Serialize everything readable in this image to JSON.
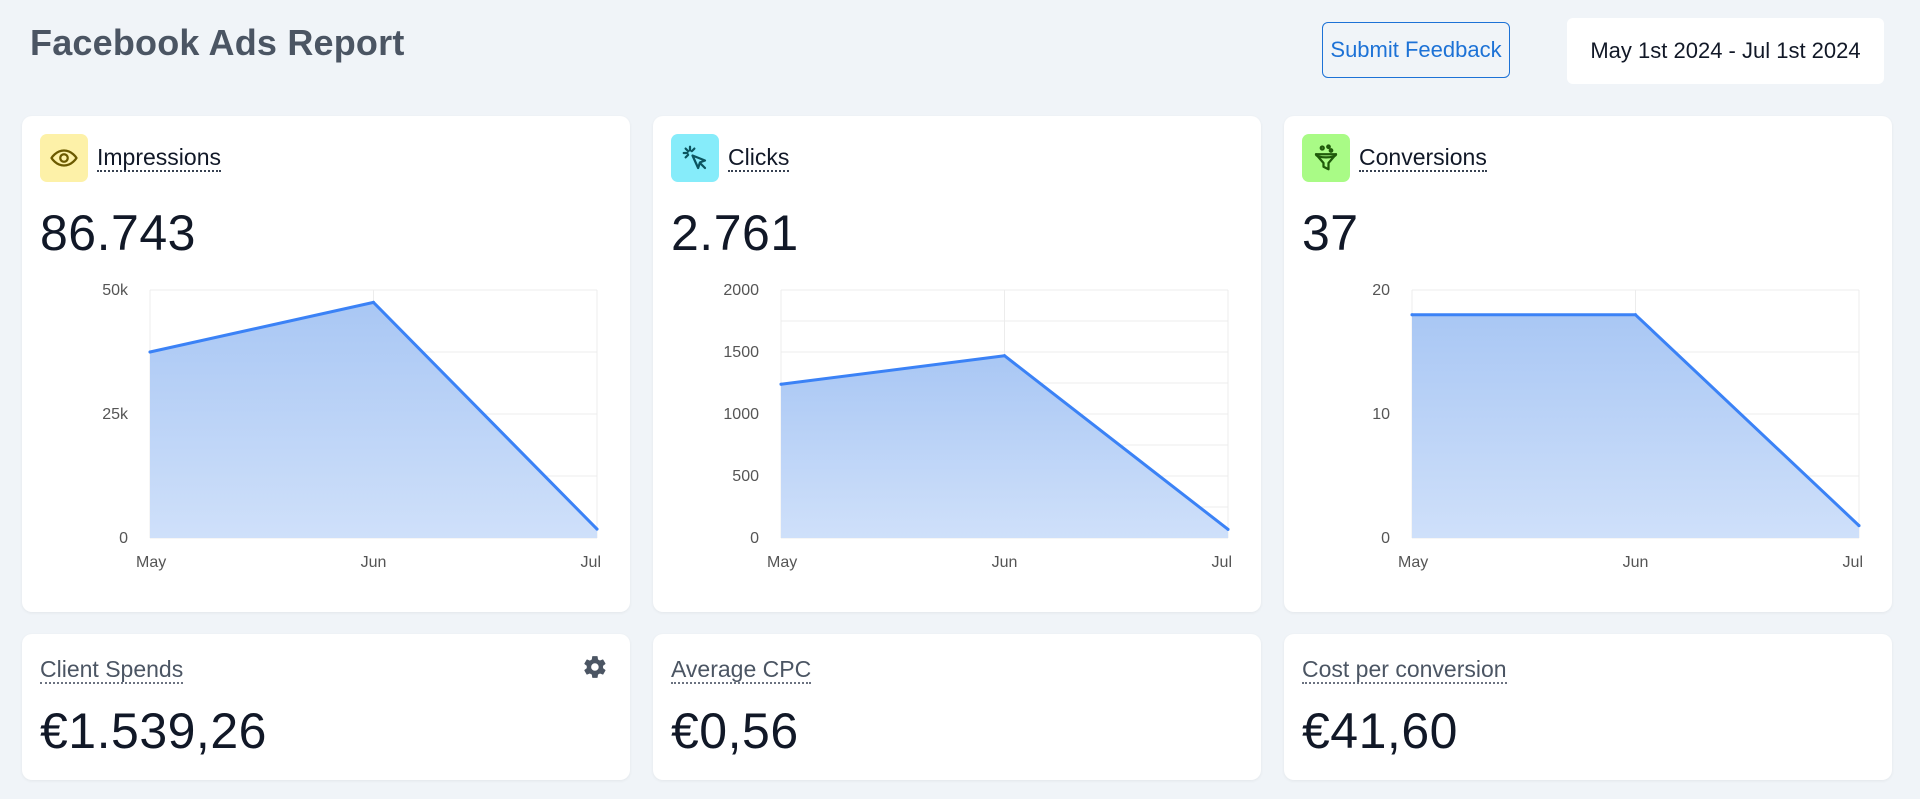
{
  "header": {
    "title": "Facebook Ads Report",
    "feedback_label": "Submit Feedback",
    "date_range": "May 1st 2024 - Jul 1st 2024"
  },
  "colors": {
    "accent": "#1d72d6",
    "line": "#3b82f6",
    "area_top": "#a9c7f4",
    "area_bottom": "#cfe0fa",
    "impressions_icon_bg": "#fdf1a8",
    "clicks_icon_bg": "#86ecfa",
    "conversions_icon_bg": "#a9fb86"
  },
  "metrics": {
    "impressions": {
      "label": "Impressions",
      "value": "86.743",
      "icon": "eye-icon"
    },
    "clicks": {
      "label": "Clicks",
      "value": "2.761",
      "icon": "cursor-click-icon"
    },
    "conversions": {
      "label": "Conversions",
      "value": "37",
      "icon": "funnel-icon"
    }
  },
  "spend": {
    "client_spends": {
      "label": "Client Spends",
      "value": "€1.539,26",
      "icon": "gear-icon"
    },
    "average_cpc": {
      "label": "Average CPC",
      "value": "€0,56"
    },
    "cost_per_conversion": {
      "label": "Cost per conversion",
      "value": "€41,60"
    }
  },
  "chart_data": [
    {
      "type": "area",
      "categories": [
        "May",
        "Jun",
        "Jul"
      ],
      "values": [
        37500,
        47500,
        1800
      ],
      "yticks": [
        "0",
        "25k",
        "50k"
      ],
      "ytick_values": [
        0,
        25000,
        50000
      ],
      "ylim": [
        0,
        50000
      ],
      "grid": true
    },
    {
      "type": "area",
      "categories": [
        "May",
        "Jun",
        "Jul"
      ],
      "values": [
        1240,
        1470,
        70
      ],
      "yticks": [
        "0",
        "500",
        "1000",
        "1500",
        "2000"
      ],
      "ytick_values": [
        0,
        500,
        1000,
        1500,
        2000
      ],
      "ylim": [
        0,
        2000
      ],
      "grid": true
    },
    {
      "type": "area",
      "categories": [
        "May",
        "Jun",
        "Jul"
      ],
      "values": [
        18,
        18,
        1
      ],
      "yticks": [
        "0",
        "10",
        "20"
      ],
      "ytick_values": [
        0,
        10,
        20
      ],
      "ylim": [
        0,
        20
      ],
      "grid": true
    }
  ]
}
